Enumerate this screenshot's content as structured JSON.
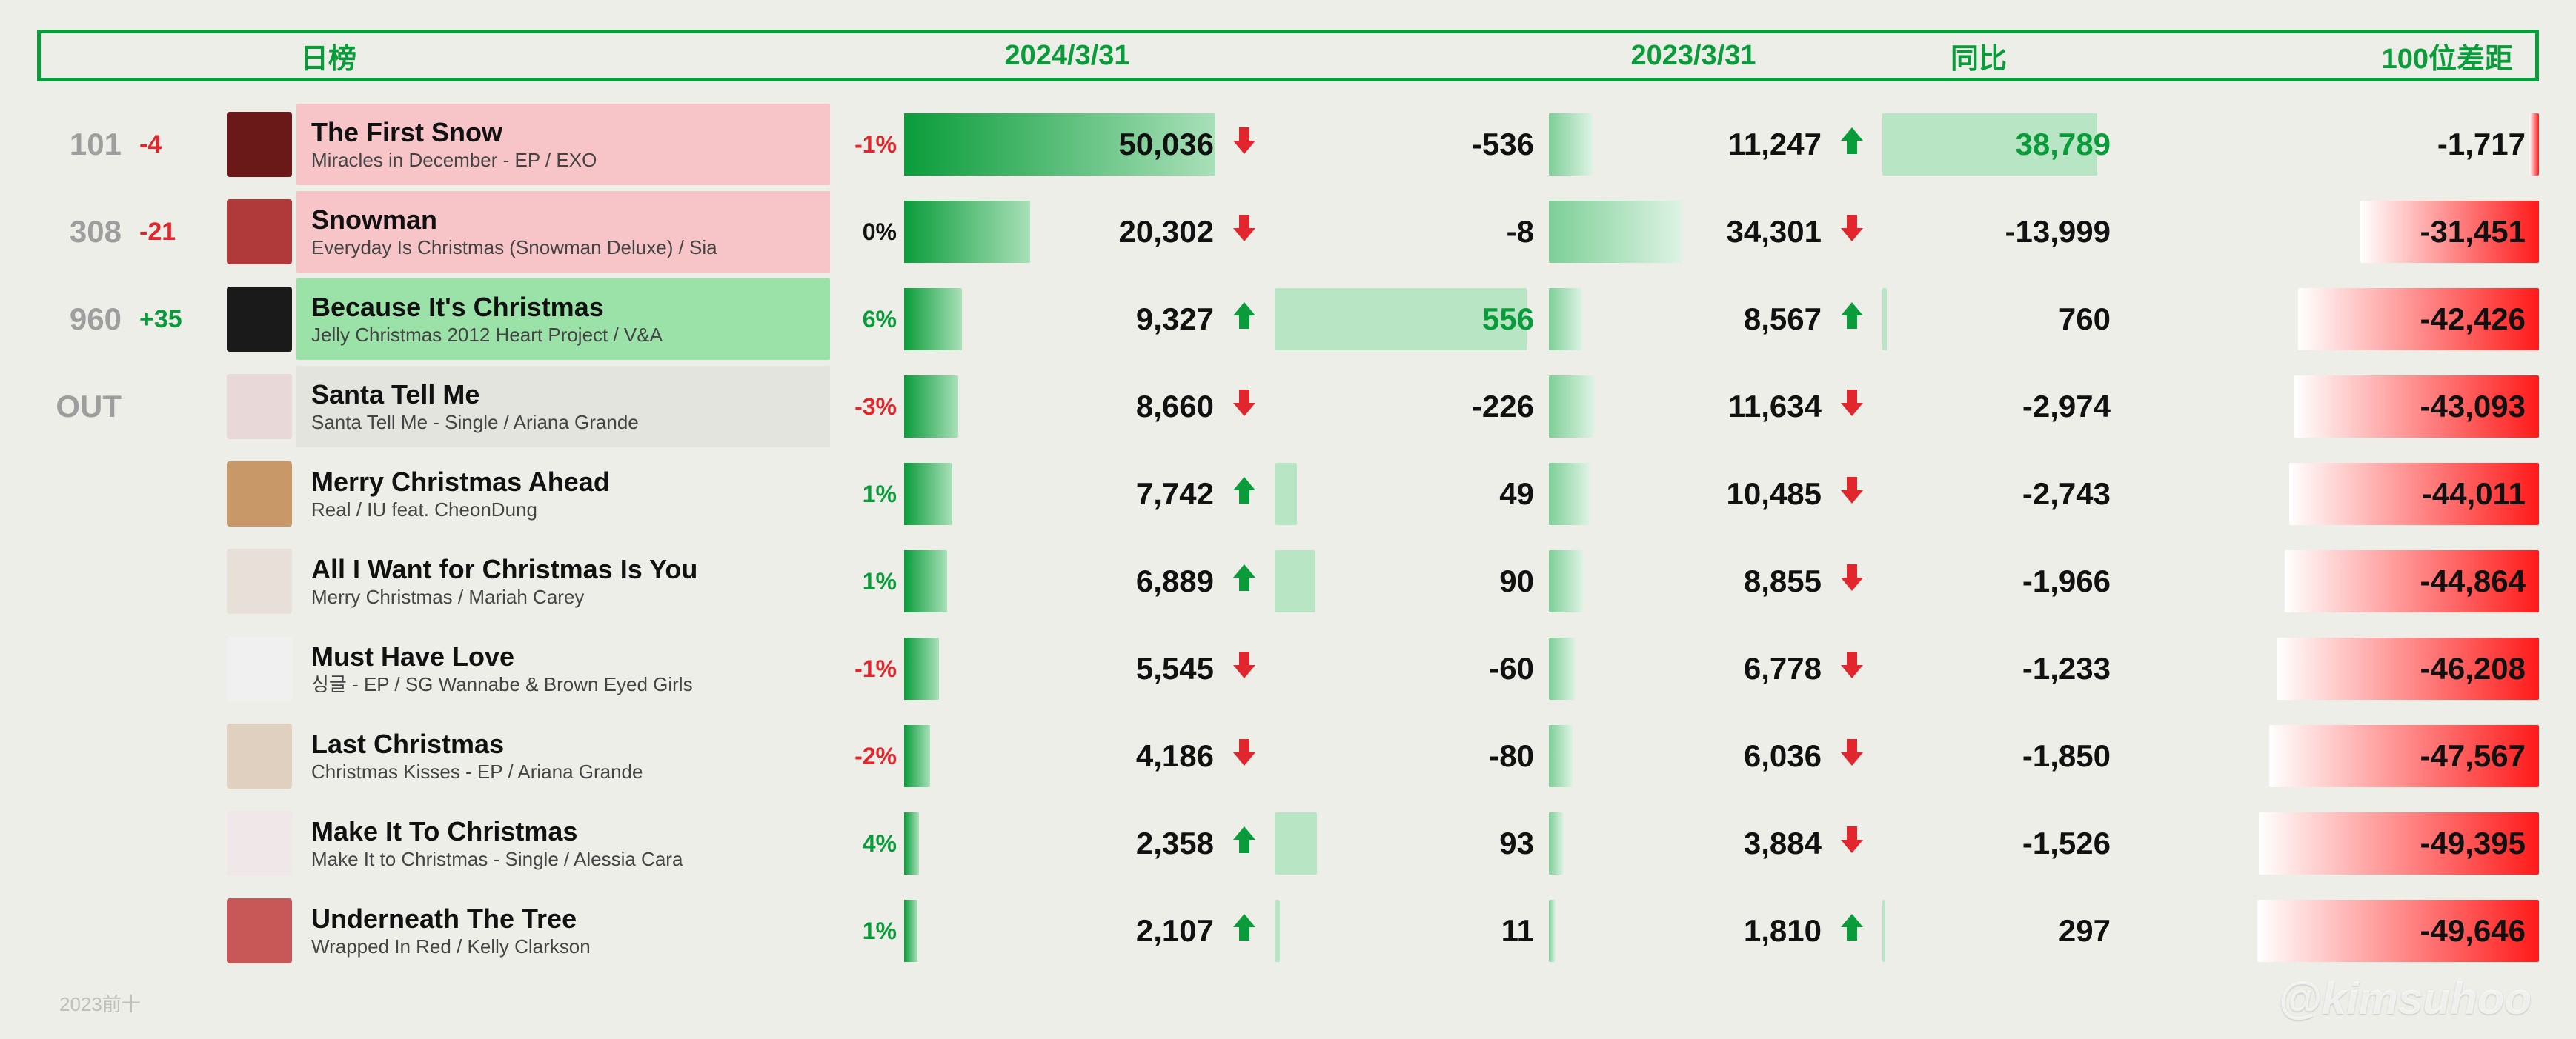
{
  "colors": {
    "green": "#0a9c3a",
    "red": "#e1262d",
    "grey": "#9e9e9e",
    "black": "#111111",
    "bar2024_grad_from": "#0a9c3a",
    "bar2024_grad_to": "#a9e0b9",
    "diff_green_bg": "#b8e5c4",
    "bar2023_grad_from": "#7dcf97",
    "bar2023_grad_to": "#def3e4",
    "yoy_green_bg": "#b8e5c4",
    "gap_grad_from": "#ffffff",
    "gap_grad_to": "#ff1a1a",
    "title_bg_pink": "#f7c4c8",
    "title_bg_green": "#9be2a9"
  },
  "header": {
    "title": "日榜",
    "date_current": "2024/3/31",
    "date_prev": "2023/3/31",
    "yoy": "同比",
    "gap": "100位差距"
  },
  "max": {
    "val2024": 50036,
    "diff": 556,
    "val2023": 34301,
    "yoy": 38789,
    "gap": 49646
  },
  "rows": [
    {
      "rank": "101",
      "delta": "-4",
      "delta_color": "#e1262d",
      "title": "The First Snow",
      "sub": "Miracles in December - EP / EXO",
      "title_bg": "#f7c4c8",
      "art_color": "#6a1818",
      "pct": "-1%",
      "pct_color": "#e1262d",
      "val2024": 50036,
      "val2024_label": "50,036",
      "diff": -536,
      "diff_label": "-536",
      "diff_arrow": "down",
      "val2023": 11247,
      "val2023_label": "11,247",
      "yoy": 38789,
      "yoy_label": "38,789",
      "yoy_arrow": "up",
      "yoy_label_color": "#0a9c3a",
      "gap": -1717,
      "gap_label": "-1,717"
    },
    {
      "rank": "308",
      "delta": "-21",
      "delta_color": "#e1262d",
      "title": "Snowman",
      "sub": "Everyday Is Christmas (Snowman Deluxe) / Sia",
      "title_bg": "#f7c4c8",
      "art_color": "#b03a3a",
      "pct": "0%",
      "pct_color": "#111111",
      "val2024": 20302,
      "val2024_label": "20,302",
      "diff": -8,
      "diff_label": "-8",
      "diff_arrow": "down",
      "val2023": 34301,
      "val2023_label": "34,301",
      "yoy": -13999,
      "yoy_label": "-13,999",
      "yoy_arrow": "down",
      "yoy_label_color": "#111111",
      "gap": -31451,
      "gap_label": "-31,451"
    },
    {
      "rank": "960",
      "delta": "+35",
      "delta_color": "#0a9c3a",
      "title": "Because It's Christmas",
      "sub": "Jelly Christmas 2012 Heart Project  / V&A",
      "title_bg": "#9be2a9",
      "art_color": "#1a1a1a",
      "pct": "6%",
      "pct_color": "#0a9c3a",
      "val2024": 9327,
      "val2024_label": "9,327",
      "diff": 556,
      "diff_label": "556",
      "diff_arrow": "up",
      "diff_label_color": "#0a9c3a",
      "val2023": 8567,
      "val2023_label": "8,567",
      "yoy": 760,
      "yoy_label": "760",
      "yoy_arrow": "up",
      "yoy_label_color": "#111111",
      "gap": -42426,
      "gap_label": "-42,426"
    },
    {
      "rank": "OUT",
      "delta": "",
      "delta_color": "#9e9e9e",
      "title": "Santa Tell Me",
      "sub": "Santa Tell Me - Single / Ariana Grande",
      "title_bg": "#e4e4de",
      "art_color": "#e8d8d8",
      "pct": "-3%",
      "pct_color": "#e1262d",
      "val2024": 8660,
      "val2024_label": "8,660",
      "diff": -226,
      "diff_label": "-226",
      "diff_arrow": "down",
      "val2023": 11634,
      "val2023_label": "11,634",
      "yoy": -2974,
      "yoy_label": "-2,974",
      "yoy_arrow": "down",
      "yoy_label_color": "#111111",
      "gap": -43093,
      "gap_label": "-43,093"
    },
    {
      "rank": "",
      "delta": "",
      "title": "Merry Christmas Ahead",
      "sub": "Real / IU feat. CheonDung",
      "title_bg": "transparent",
      "art_color": "#c89868",
      "pct": "1%",
      "pct_color": "#0a9c3a",
      "val2024": 7742,
      "val2024_label": "7,742",
      "diff": 49,
      "diff_label": "49",
      "diff_arrow": "up",
      "val2023": 10485,
      "val2023_label": "10,485",
      "yoy": -2743,
      "yoy_label": "-2,743",
      "yoy_arrow": "down",
      "yoy_label_color": "#111111",
      "gap": -44011,
      "gap_label": "-44,011"
    },
    {
      "rank": "",
      "delta": "",
      "title": "All I Want for Christmas Is You",
      "sub": "Merry Christmas / Mariah Carey",
      "title_bg": "transparent",
      "art_color": "#e8e0d8",
      "pct": "1%",
      "pct_color": "#0a9c3a",
      "val2024": 6889,
      "val2024_label": "6,889",
      "diff": 90,
      "diff_label": "90",
      "diff_arrow": "up",
      "val2023": 8855,
      "val2023_label": "8,855",
      "yoy": -1966,
      "yoy_label": "-1,966",
      "yoy_arrow": "down",
      "yoy_label_color": "#111111",
      "gap": -44864,
      "gap_label": "-44,864"
    },
    {
      "rank": "",
      "delta": "",
      "title": "Must Have Love",
      "sub": "싱글 - EP / SG Wannabe & Brown Eyed Girls",
      "title_bg": "transparent",
      "art_color": "#f0f0f0",
      "pct": "-1%",
      "pct_color": "#e1262d",
      "val2024": 5545,
      "val2024_label": "5,545",
      "diff": -60,
      "diff_label": "-60",
      "diff_arrow": "down",
      "val2023": 6778,
      "val2023_label": "6,778",
      "yoy": -1233,
      "yoy_label": "-1,233",
      "yoy_arrow": "down",
      "yoy_label_color": "#111111",
      "gap": -46208,
      "gap_label": "-46,208"
    },
    {
      "rank": "",
      "delta": "",
      "title": "Last Christmas",
      "sub": "Christmas Kisses - EP / Ariana Grande",
      "title_bg": "transparent",
      "art_color": "#e0d0c0",
      "pct": "-2%",
      "pct_color": "#e1262d",
      "val2024": 4186,
      "val2024_label": "4,186",
      "diff": -80,
      "diff_label": "-80",
      "diff_arrow": "down",
      "val2023": 6036,
      "val2023_label": "6,036",
      "yoy": -1850,
      "yoy_label": "-1,850",
      "yoy_arrow": "down",
      "yoy_label_color": "#111111",
      "gap": -47567,
      "gap_label": "-47,567"
    },
    {
      "rank": "",
      "delta": "",
      "title": "Make It To Christmas",
      "sub": "Make It to Christmas - Single / Alessia Cara",
      "title_bg": "transparent",
      "art_color": "#f0e8e8",
      "pct": "4%",
      "pct_color": "#0a9c3a",
      "val2024": 2358,
      "val2024_label": "2,358",
      "diff": 93,
      "diff_label": "93",
      "diff_arrow": "up",
      "val2023": 3884,
      "val2023_label": "3,884",
      "yoy": -1526,
      "yoy_label": "-1,526",
      "yoy_arrow": "down",
      "yoy_label_color": "#111111",
      "gap": -49395,
      "gap_label": "-49,395"
    },
    {
      "rank": "",
      "delta": "",
      "title": "Underneath The Tree",
      "sub": "Wrapped In Red / Kelly Clarkson",
      "title_bg": "transparent",
      "art_color": "#c85858",
      "pct": "1%",
      "pct_color": "#0a9c3a",
      "val2024": 2107,
      "val2024_label": "2,107",
      "diff": 11,
      "diff_label": "11",
      "diff_arrow": "up",
      "val2023": 1810,
      "val2023_label": "1,810",
      "yoy": 297,
      "yoy_label": "297",
      "yoy_arrow": "up",
      "yoy_label_color": "#111111",
      "gap": -49646,
      "gap_label": "-49,646"
    }
  ],
  "watermark": "@kimsuhoo",
  "watermark2": "2023前十"
}
